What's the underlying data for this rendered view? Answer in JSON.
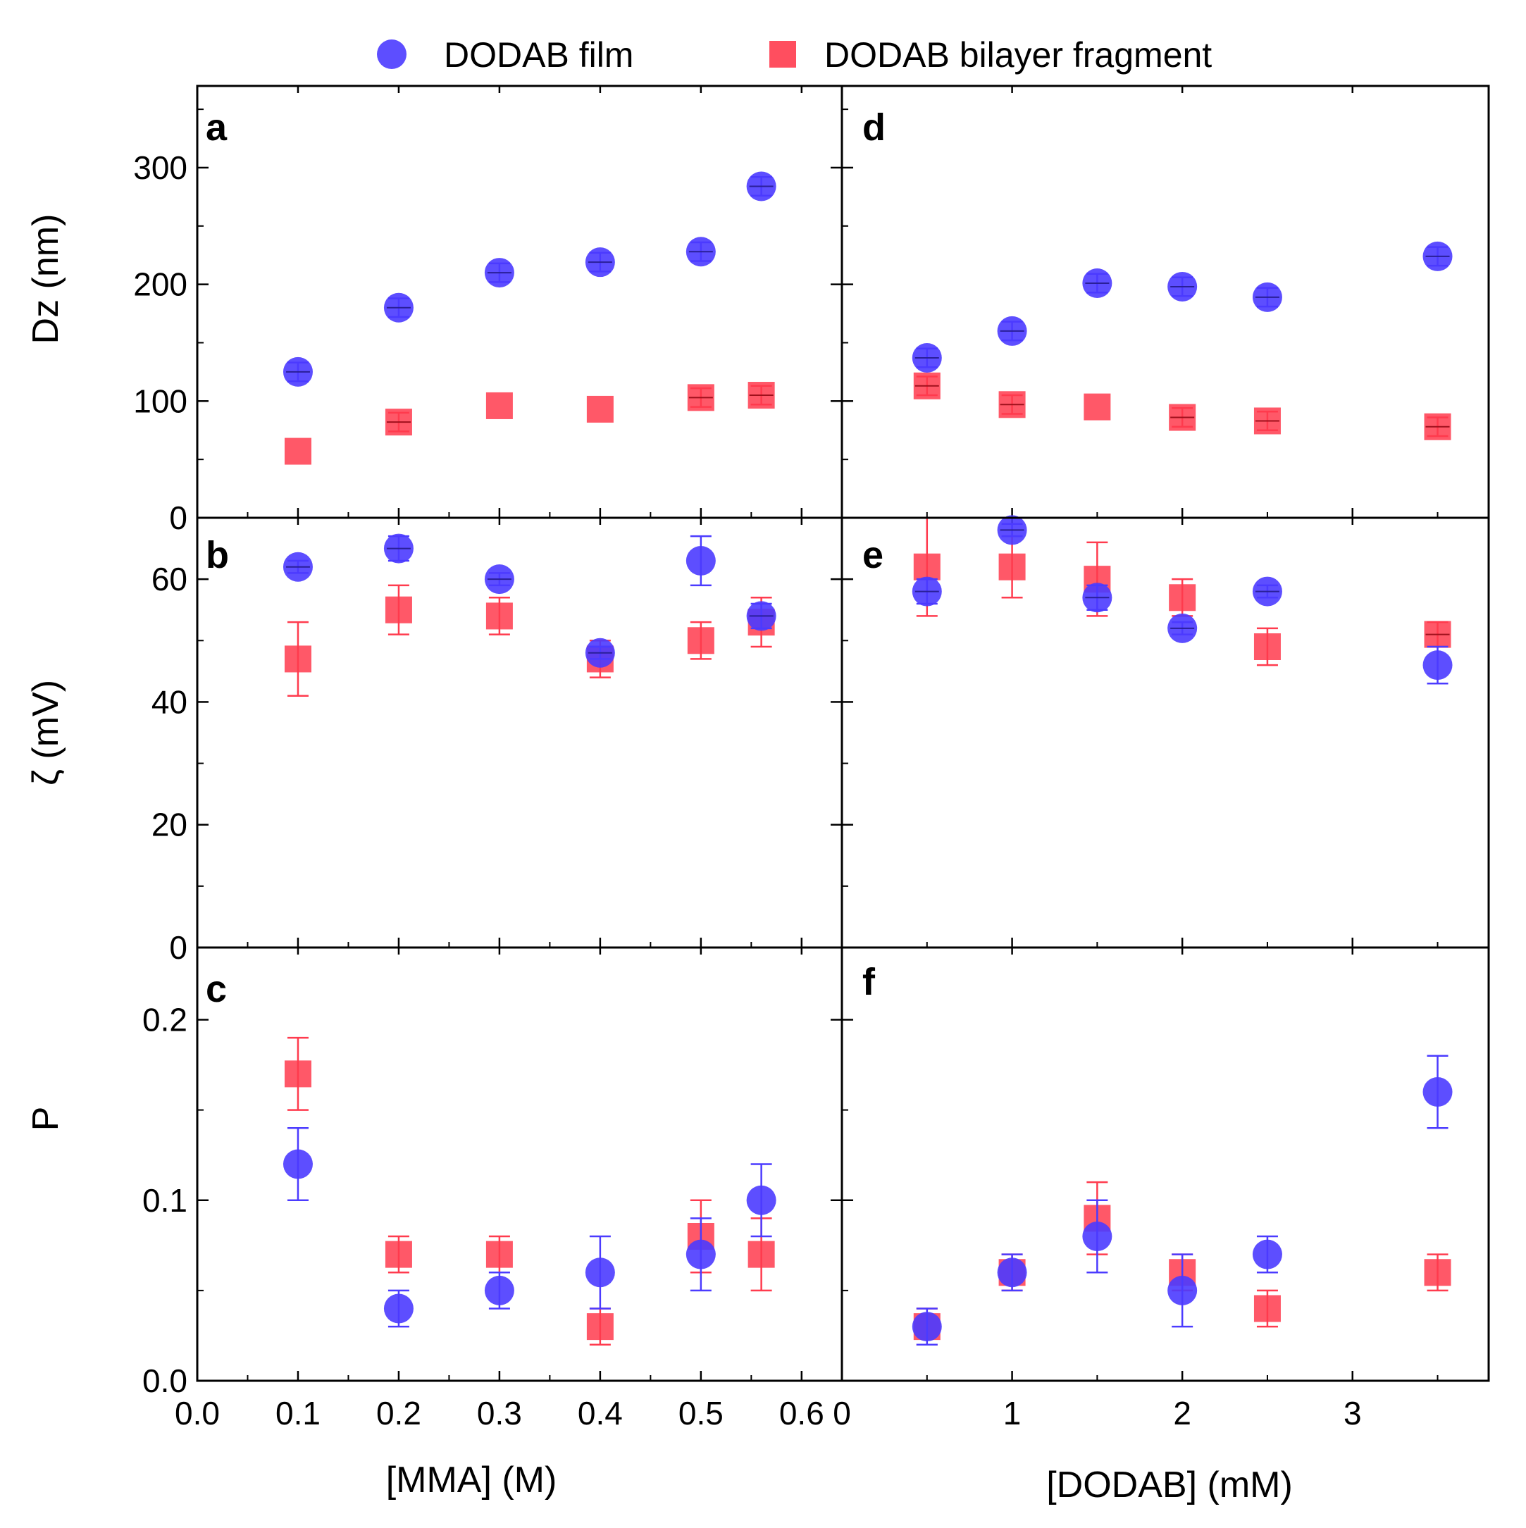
{
  "chart_data": {
    "type": "scatter",
    "legend": {
      "position": "top",
      "entries": [
        {
          "label": "DODAB film",
          "marker": "circle",
          "color": "#4b3bff"
        },
        {
          "label": "DODAB bilayer fragment",
          "marker": "square",
          "color": "#ff3b4e"
        }
      ]
    },
    "rows": [
      {
        "key": "dz",
        "ylabel": "Dz (nm)",
        "ylim": [
          0,
          370
        ],
        "yticks": [
          0,
          100,
          200,
          300
        ],
        "yminor": 50
      },
      {
        "key": "zeta",
        "ylabel": "ζ (mV)",
        "ylim": [
          0,
          70
        ],
        "yticks": [
          0,
          20,
          40,
          60
        ],
        "yminor": 10
      },
      {
        "key": "p",
        "ylabel": "P",
        "ylim": [
          0,
          0.24
        ],
        "yticks": [
          0,
          0.1,
          0.2
        ],
        "ytick_labels": [
          "0.0",
          "0.1",
          "0.2"
        ],
        "yminor": 0.05
      }
    ],
    "columns": [
      {
        "key": "mma",
        "xlabel": "[MMA] (M)",
        "xlim": [
          0,
          0.64
        ],
        "xticks": [
          0,
          0.1,
          0.2,
          0.3,
          0.4,
          0.5,
          0.6
        ],
        "xtick_labels": [
          "0.0",
          "0.1",
          "0.2",
          "0.3",
          "0.4",
          "0.5",
          "0.6"
        ],
        "xminor": 0.05
      },
      {
        "key": "dodab",
        "xlabel": "[DODAB] (mM)",
        "xlim": [
          0,
          3.8
        ],
        "xticks": [
          0,
          1,
          2,
          3
        ],
        "xtick_labels": [
          "0",
          "1",
          "2",
          "3"
        ],
        "xminor": 0.5
      }
    ],
    "panels": [
      {
        "letter": "a",
        "row": 0,
        "col": 0,
        "series": [
          {
            "name": "DODAB film",
            "x": [
              0.1,
              0.2,
              0.3,
              0.4,
              0.5,
              0.56
            ],
            "y": [
              125,
              180,
              210,
              219,
              228,
              284
            ],
            "yerr": [
              8,
              8,
              8,
              8,
              8,
              8
            ]
          },
          {
            "name": "DODAB bilayer fragment",
            "x": [
              0.1,
              0.2,
              0.3,
              0.4,
              0.5,
              0.56
            ],
            "y": [
              57,
              82,
              96,
              93,
              103,
              105
            ],
            "yerr": [
              0,
              8,
              0,
              0,
              8,
              8
            ]
          }
        ]
      },
      {
        "letter": "b",
        "row": 1,
        "col": 0,
        "series": [
          {
            "name": "DODAB film",
            "x": [
              0.1,
              0.2,
              0.3,
              0.4,
              0.5,
              0.56
            ],
            "y": [
              62,
              65,
              60,
              48,
              63,
              54
            ],
            "yerr": [
              1,
              2,
              1,
              1,
              4,
              2
            ]
          },
          {
            "name": "DODAB bilayer fragment",
            "x": [
              0.1,
              0.2,
              0.3,
              0.4,
              0.5,
              0.56
            ],
            "y": [
              47,
              55,
              54,
              47,
              50,
              53
            ],
            "yerr": [
              6,
              4,
              3,
              3,
              3,
              4
            ]
          }
        ]
      },
      {
        "letter": "c",
        "row": 2,
        "col": 0,
        "series": [
          {
            "name": "DODAB film",
            "x": [
              0.1,
              0.2,
              0.3,
              0.4,
              0.5,
              0.56
            ],
            "y": [
              0.12,
              0.04,
              0.05,
              0.06,
              0.07,
              0.1
            ],
            "yerr": [
              0.02,
              0.01,
              0.01,
              0.02,
              0.02,
              0.02
            ]
          },
          {
            "name": "DODAB bilayer fragment",
            "x": [
              0.1,
              0.2,
              0.3,
              0.4,
              0.5,
              0.56
            ],
            "y": [
              0.17,
              0.07,
              0.07,
              0.03,
              0.08,
              0.07
            ],
            "yerr": [
              0.02,
              0.01,
              0.01,
              0.01,
              0.02,
              0.02
            ]
          }
        ]
      },
      {
        "letter": "d",
        "row": 0,
        "col": 1,
        "series": [
          {
            "name": "DODAB film",
            "x": [
              0.5,
              1.0,
              1.5,
              2.0,
              2.5,
              3.5
            ],
            "y": [
              137,
              160,
              201,
              198,
              189,
              224
            ],
            "yerr": [
              8,
              8,
              8,
              8,
              8,
              8
            ]
          },
          {
            "name": "DODAB bilayer fragment",
            "x": [
              0.5,
              1.0,
              1.5,
              2.0,
              2.5,
              3.5
            ],
            "y": [
              113,
              97,
              95,
              86,
              83,
              78
            ],
            "yerr": [
              8,
              8,
              0,
              8,
              8,
              8
            ]
          }
        ]
      },
      {
        "letter": "e",
        "row": 1,
        "col": 1,
        "series": [
          {
            "name": "DODAB film",
            "x": [
              0.5,
              1.0,
              1.5,
              2.0,
              2.5,
              3.5
            ],
            "y": [
              58,
              68,
              57,
              52,
              58,
              46
            ],
            "yerr": [
              2,
              1,
              2,
              1,
              1,
              3
            ]
          },
          {
            "name": "DODAB bilayer fragment",
            "x": [
              0.5,
              1.0,
              1.5,
              2.0,
              2.5,
              3.5
            ],
            "y": [
              62,
              62,
              60,
              57,
              49,
              51
            ],
            "yerr": [
              8,
              5,
              6,
              3,
              3,
              2
            ]
          }
        ]
      },
      {
        "letter": "f",
        "row": 2,
        "col": 1,
        "series": [
          {
            "name": "DODAB film",
            "x": [
              0.5,
              1.0,
              1.5,
              2.0,
              2.5,
              3.5
            ],
            "y": [
              0.03,
              0.06,
              0.08,
              0.05,
              0.07,
              0.16
            ],
            "yerr": [
              0.01,
              0.01,
              0.02,
              0.02,
              0.01,
              0.02
            ]
          },
          {
            "name": "DODAB bilayer fragment",
            "x": [
              0.5,
              1.0,
              1.5,
              2.0,
              2.5,
              3.5
            ],
            "y": [
              0.03,
              0.06,
              0.09,
              0.06,
              0.04,
              0.06
            ],
            "yerr": [
              0.01,
              0.01,
              0.02,
              0.01,
              0.01,
              0.01
            ]
          }
        ]
      }
    ]
  }
}
